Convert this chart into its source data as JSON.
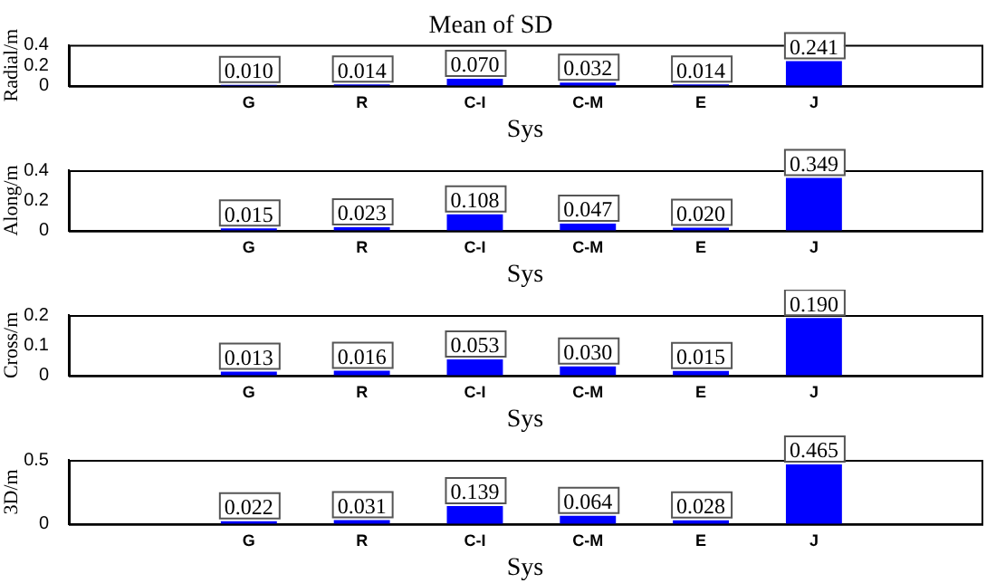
{
  "chart_data": [
    {
      "type": "bar",
      "title": "Mean of SD",
      "xlabel": "Sys",
      "ylabel": "Radial/m",
      "categories": [
        "G",
        "R",
        "C-I",
        "C-M",
        "E",
        "J"
      ],
      "values": [
        0.01,
        0.014,
        0.07,
        0.032,
        0.014,
        0.241
      ],
      "value_labels": [
        "0.010",
        "0.014",
        "0.070",
        "0.032",
        "0.014",
        "0.241"
      ],
      "color": "#0000ff",
      "ylim": [
        0,
        0.4
      ],
      "yticks": [
        0,
        0.2,
        0.4
      ],
      "grid": false,
      "legend": false
    },
    {
      "type": "bar",
      "xlabel": "Sys",
      "ylabel": "Along/m",
      "categories": [
        "G",
        "R",
        "C-I",
        "C-M",
        "E",
        "J"
      ],
      "values": [
        0.015,
        0.023,
        0.108,
        0.047,
        0.02,
        0.349
      ],
      "value_labels": [
        "0.015",
        "0.023",
        "0.108",
        "0.047",
        "0.020",
        "0.349"
      ],
      "color": "#0000ff",
      "ylim": [
        0,
        0.4
      ],
      "yticks": [
        0,
        0.2,
        0.4
      ],
      "grid": false,
      "legend": false
    },
    {
      "type": "bar",
      "xlabel": "Sys",
      "ylabel": "Cross/m",
      "categories": [
        "G",
        "R",
        "C-I",
        "C-M",
        "E",
        "J"
      ],
      "values": [
        0.013,
        0.016,
        0.053,
        0.03,
        0.015,
        0.19
      ],
      "value_labels": [
        "0.013",
        "0.016",
        "0.053",
        "0.030",
        "0.015",
        "0.190"
      ],
      "color": "#0000ff",
      "ylim": [
        0,
        0.2
      ],
      "yticks": [
        0,
        0.1,
        0.2
      ],
      "grid": false,
      "legend": false
    },
    {
      "type": "bar",
      "xlabel": "Sys",
      "ylabel": "3D/m",
      "categories": [
        "G",
        "R",
        "C-I",
        "C-M",
        "E",
        "J"
      ],
      "values": [
        0.022,
        0.031,
        0.139,
        0.064,
        0.028,
        0.465
      ],
      "value_labels": [
        "0.022",
        "0.031",
        "0.139",
        "0.064",
        "0.028",
        "0.465"
      ],
      "color": "#0000ff",
      "ylim": [
        0,
        0.5
      ],
      "yticks": [
        0,
        0.5
      ],
      "grid": false,
      "legend": false
    }
  ]
}
